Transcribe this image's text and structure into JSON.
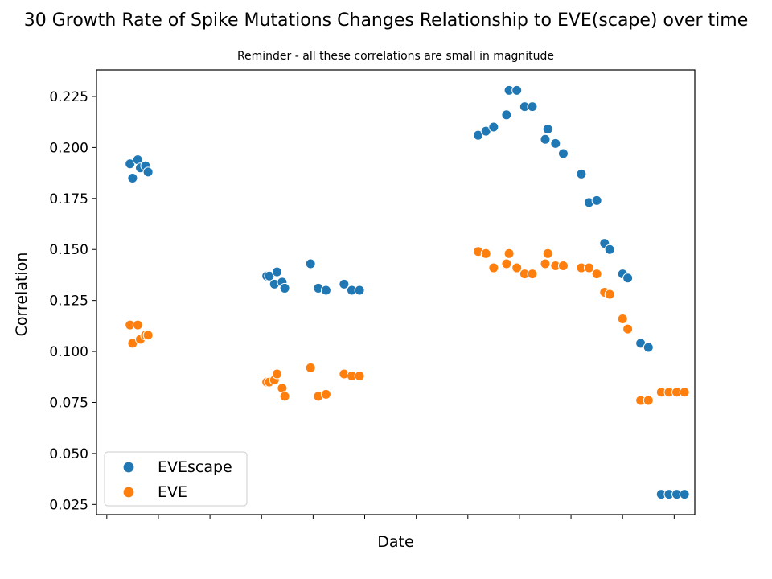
{
  "chart_data": {
    "type": "scatter",
    "title": "30 Growth Rate of Spike Mutations Changes Relationship to EVE(scape) over time",
    "subtitle": "Reminder - all these correlations are small in magnitude",
    "xlabel": "Date",
    "ylabel": "Correlation",
    "x_tick_labels_visible": false,
    "x_range": [
      -0.2,
      11.4
    ],
    "ylim": [
      0.02,
      0.238
    ],
    "yticks": [
      0.025,
      0.05,
      0.075,
      0.1,
      0.125,
      0.15,
      0.175,
      0.2,
      0.225
    ],
    "ytick_labels": [
      "0.025",
      "0.050",
      "0.075",
      "0.100",
      "0.125",
      "0.150",
      "0.175",
      "0.200",
      "0.225"
    ],
    "grid": false,
    "legend_position": "lower-left",
    "series": [
      {
        "name": "EVEscape",
        "color": "#1f77b4",
        "x": [
          0.45,
          0.5,
          0.6,
          0.65,
          0.75,
          0.8,
          3.1,
          3.15,
          3.25,
          3.3,
          3.4,
          3.45,
          3.95,
          4.1,
          4.25,
          4.6,
          4.75,
          4.9,
          7.2,
          7.35,
          7.5,
          7.75,
          7.8,
          7.95,
          8.1,
          8.25,
          8.5,
          8.55,
          8.7,
          8.85,
          9.2,
          9.35,
          9.5,
          9.65,
          9.75,
          10.0,
          10.1,
          10.35,
          10.5,
          10.75,
          10.9,
          11.05,
          11.2
        ],
        "y": [
          0.192,
          0.185,
          0.194,
          0.19,
          0.191,
          0.188,
          0.137,
          0.137,
          0.133,
          0.139,
          0.134,
          0.131,
          0.143,
          0.131,
          0.13,
          0.133,
          0.13,
          0.13,
          0.206,
          0.208,
          0.21,
          0.216,
          0.228,
          0.228,
          0.22,
          0.22,
          0.204,
          0.209,
          0.202,
          0.197,
          0.187,
          0.173,
          0.174,
          0.153,
          0.15,
          0.138,
          0.136,
          0.104,
          0.102,
          0.03,
          0.03,
          0.03,
          0.03
        ]
      },
      {
        "name": "EVE",
        "color": "#ff7f0e",
        "x": [
          0.45,
          0.5,
          0.6,
          0.65,
          0.75,
          0.8,
          3.1,
          3.15,
          3.25,
          3.3,
          3.4,
          3.45,
          3.95,
          4.1,
          4.25,
          4.6,
          4.75,
          4.9,
          7.2,
          7.35,
          7.5,
          7.75,
          7.8,
          7.95,
          8.1,
          8.25,
          8.5,
          8.55,
          8.7,
          8.85,
          9.2,
          9.35,
          9.5,
          9.65,
          9.75,
          10.0,
          10.1,
          10.35,
          10.5,
          10.75,
          10.9,
          11.05,
          11.2
        ],
        "y": [
          0.113,
          0.104,
          0.113,
          0.106,
          0.108,
          0.108,
          0.085,
          0.085,
          0.086,
          0.089,
          0.082,
          0.078,
          0.092,
          0.078,
          0.079,
          0.089,
          0.088,
          0.088,
          0.149,
          0.148,
          0.141,
          0.143,
          0.148,
          0.141,
          0.138,
          0.138,
          0.143,
          0.148,
          0.142,
          0.142,
          0.141,
          0.141,
          0.138,
          0.129,
          0.128,
          0.116,
          0.111,
          0.076,
          0.076,
          0.08,
          0.08,
          0.08,
          0.08
        ]
      }
    ]
  }
}
